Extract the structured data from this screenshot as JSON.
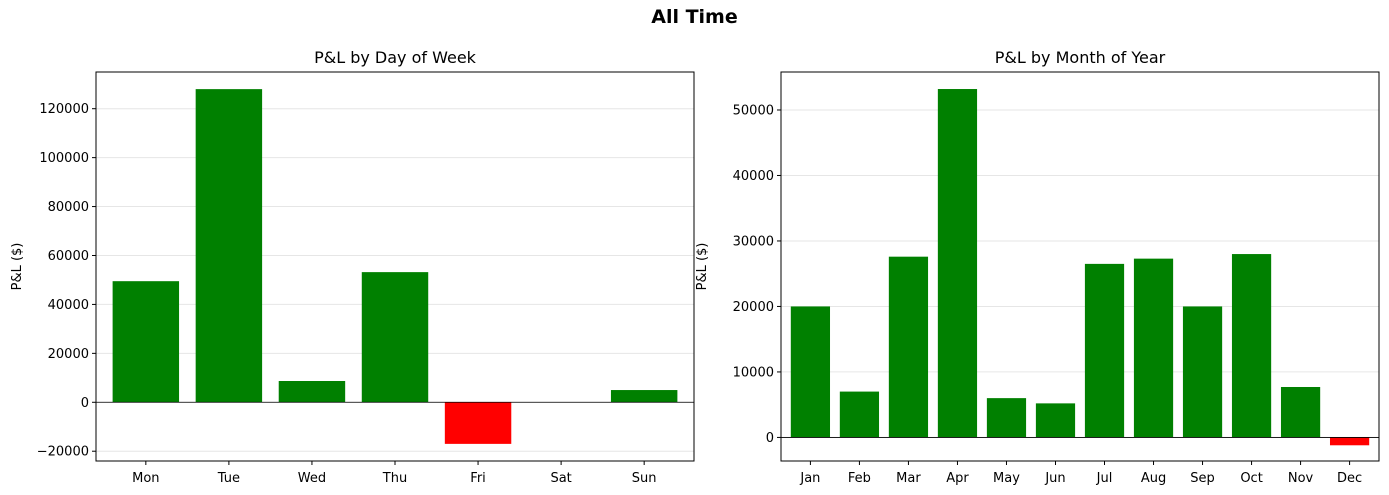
{
  "figure": {
    "suptitle": "All Time"
  },
  "colors": {
    "positive": "#008000",
    "negative": "#ff0000",
    "grid": "#e6e6e6",
    "axis": "#000000"
  },
  "chart_data": [
    {
      "type": "bar",
      "title": "P&L by Day of Week",
      "xlabel": "",
      "ylabel": "P&L ($)",
      "categories": [
        "Mon",
        "Tue",
        "Wed",
        "Thu",
        "Fri",
        "Sat",
        "Sun"
      ],
      "values": [
        49500,
        128000,
        8700,
        53200,
        -17000,
        0,
        5000
      ],
      "ylim": [
        -24000,
        135000
      ],
      "yticks": [
        -20000,
        0,
        20000,
        40000,
        60000,
        80000,
        100000,
        120000
      ],
      "grid": "y"
    },
    {
      "type": "bar",
      "title": "P&L by Month of Year",
      "xlabel": "",
      "ylabel": "P&L ($)",
      "categories": [
        "Jan",
        "Feb",
        "Mar",
        "Apr",
        "May",
        "Jun",
        "Jul",
        "Aug",
        "Sep",
        "Oct",
        "Nov",
        "Dec"
      ],
      "values": [
        20000,
        7000,
        27600,
        53200,
        6000,
        5200,
        26500,
        27300,
        20000,
        28000,
        7700,
        -1200
      ],
      "ylim": [
        -3600,
        55800
      ],
      "yticks": [
        0,
        10000,
        20000,
        30000,
        40000,
        50000
      ],
      "grid": "y"
    }
  ]
}
